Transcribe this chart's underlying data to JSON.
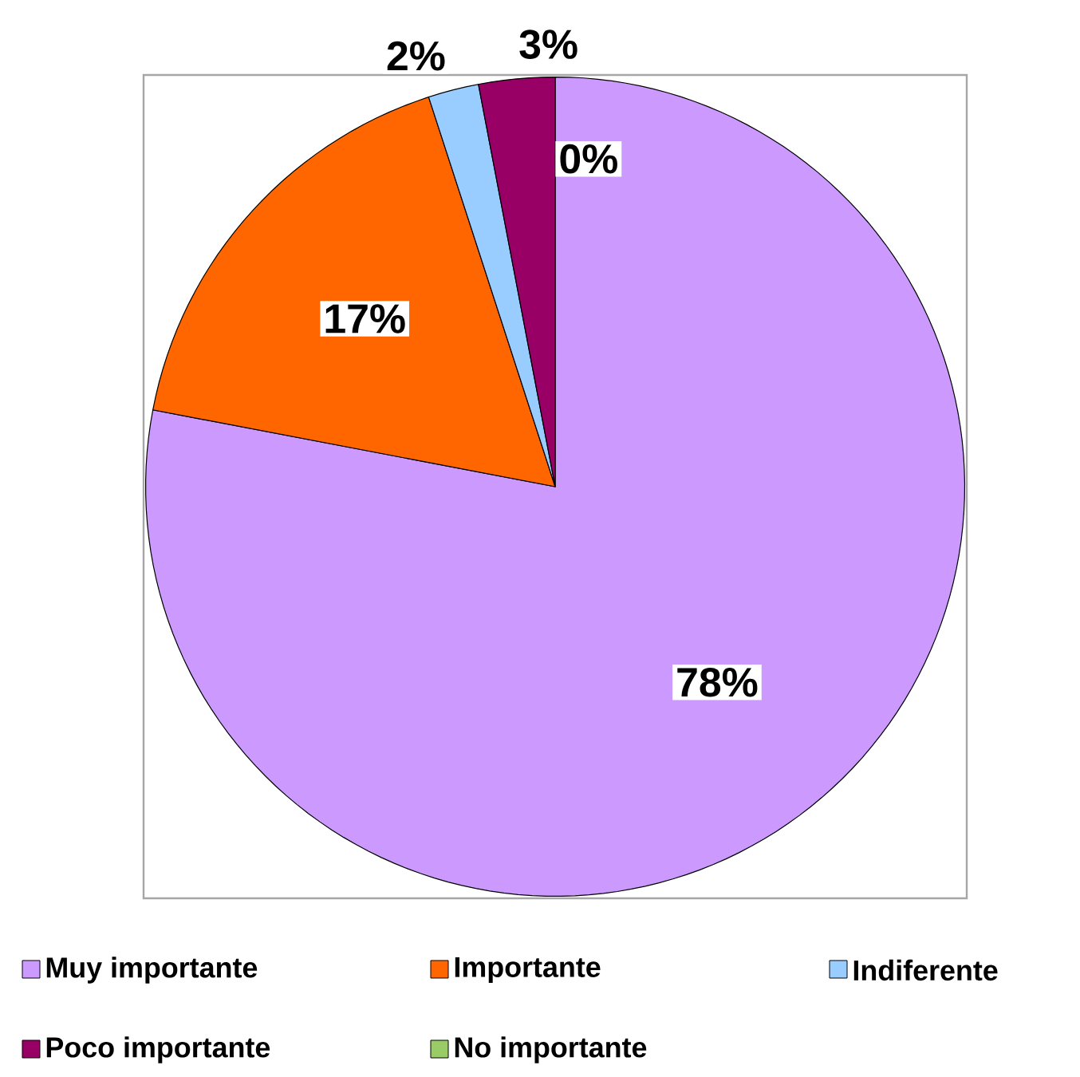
{
  "chart_data": {
    "type": "pie",
    "categories": [
      "Muy importante",
      "Importante",
      "Indiferente",
      "Poco importante",
      "No importante"
    ],
    "values": [
      78,
      17,
      2,
      3,
      0
    ],
    "colors": [
      "#cc99ff",
      "#ff6600",
      "#99ccff",
      "#990066",
      "#99cc66"
    ],
    "value_labels": [
      "78%",
      "17%",
      "2%",
      "3%",
      "0%"
    ],
    "legend": "bottom"
  }
}
